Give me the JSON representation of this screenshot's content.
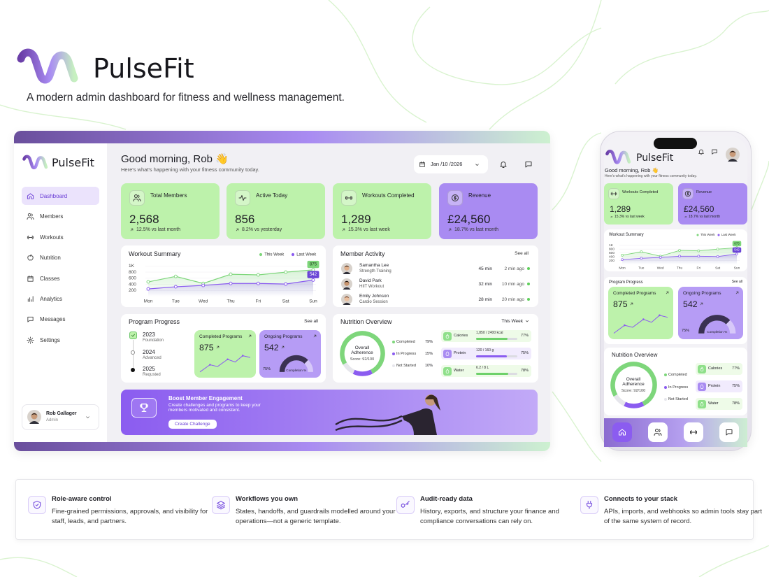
{
  "brand": {
    "name": "PulseFit",
    "tagline": "A modern admin dashboard for fitness and wellness management."
  },
  "sidebar": {
    "nav": [
      "Dashboard",
      "Members",
      "Workouts",
      "Nutrition",
      "Classes",
      "Analytics",
      "Messages",
      "Settings"
    ],
    "user": {
      "name": "Rob Gallager",
      "role": "Admin"
    }
  },
  "header": {
    "greeting": "Good morning, Rob 👋",
    "subtitle": "Here's what's happening with your fitness community today.",
    "date": "Jan /10 /2026"
  },
  "stats": [
    {
      "label": "Total Members",
      "value": "2,568",
      "change": "12.5% vs last month"
    },
    {
      "label": "Active Today",
      "value": "856",
      "change": "8.2% vs yesterday"
    },
    {
      "label": "Workouts Completed",
      "value": "1,289",
      "change": "15.3% vs last week"
    },
    {
      "label": "Revenue",
      "value": "£24,560",
      "change": "18.7% vs last month"
    }
  ],
  "workout_summary": {
    "title": "Workout Summary",
    "categories": [
      "Mon",
      "Tue",
      "Wed",
      "Thu",
      "Fri",
      "Sat",
      "Sun"
    ],
    "ylim": [
      0,
      1100
    ],
    "yticks": [
      {
        "value": 1000,
        "label": "1K"
      },
      800,
      600,
      400,
      200
    ],
    "series": [
      {
        "name": "This Week",
        "color": "#7ed67b",
        "values": [
          480,
          660,
          430,
          730,
          710,
          800,
          875
        ]
      },
      {
        "name": "Last Week",
        "color": "#8b5cf0",
        "values": [
          250,
          320,
          365,
          430,
          430,
          410,
          542
        ]
      }
    ]
  },
  "member_activity": {
    "title": "Member Activity",
    "link": "See all",
    "members": [
      {
        "name": "Samantha Lee",
        "activity": "Strength Training",
        "duration": "45 min",
        "time": "2 min ago"
      },
      {
        "name": "David Park",
        "activity": "HIIT Workout",
        "duration": "32 min",
        "time": "10 min ago"
      },
      {
        "name": "Emily Johnson",
        "activity": "Cardio Session",
        "duration": "28 min",
        "time": "20 min ago"
      }
    ]
  },
  "program_progress": {
    "title": "Program Progress",
    "link": "See all",
    "timeline": [
      {
        "year": "2023",
        "stage": "Foundation"
      },
      {
        "year": "2024",
        "stage": "Advanced"
      },
      {
        "year": "2025",
        "stage": "Requsted"
      }
    ],
    "completed": {
      "label": "Completed Programs",
      "value": "875"
    },
    "ongoing": {
      "label": "Ongoing Programs",
      "value": "542",
      "completion": {
        "value": 75,
        "label": "75%"
      },
      "completion_label": "Completion %"
    }
  },
  "nutrition": {
    "title": "Nutrition Overview",
    "period": "This Week",
    "donut": {
      "title": "Overall Adherence",
      "score": "Score: 92/100"
    },
    "legend": [
      {
        "name": "Completed",
        "color": "#7ed67b",
        "share": {
          "value": 79,
          "label": "79%"
        }
      },
      {
        "name": "In Progress",
        "color": "#8b5cf0",
        "share": {
          "value": 15,
          "label": "15%"
        }
      },
      {
        "name": "Not Started",
        "color": "#e6e6ec",
        "share": {
          "value": 10,
          "label": "10%"
        }
      }
    ],
    "nutrients": [
      {
        "name": "Calories",
        "amount": "1,850 / 2400 kcal",
        "percent": {
          "value": 77,
          "label": "77%"
        }
      },
      {
        "name": "Protein",
        "amount": "120 / 160 g",
        "percent": {
          "value": 75,
          "label": "75%"
        }
      },
      {
        "name": "Water",
        "amount": "6.2 / 8 L",
        "percent": {
          "value": 78,
          "label": "78%"
        }
      }
    ]
  },
  "banner": {
    "title": "Boost Member Engagement",
    "text": "Create challenges and programs to keep your members motivated and consistent.",
    "button": "Create Challenge"
  },
  "features": [
    {
      "title": "Role-aware control",
      "text": "Fine-grained permissions, approvals, and visibility for staff, leads, and partners."
    },
    {
      "title": "Workflows you own",
      "text": "States, handoffs, and guardrails modelled around your operations—not a generic template."
    },
    {
      "title": "Audit-ready data",
      "text": "History, exports, and structure your finance and compliance conversations can rely on."
    },
    {
      "title": "Connects to your stack",
      "text": "APIs, imports, and webhooks so admin tools stay part of the same system of record."
    }
  ]
}
